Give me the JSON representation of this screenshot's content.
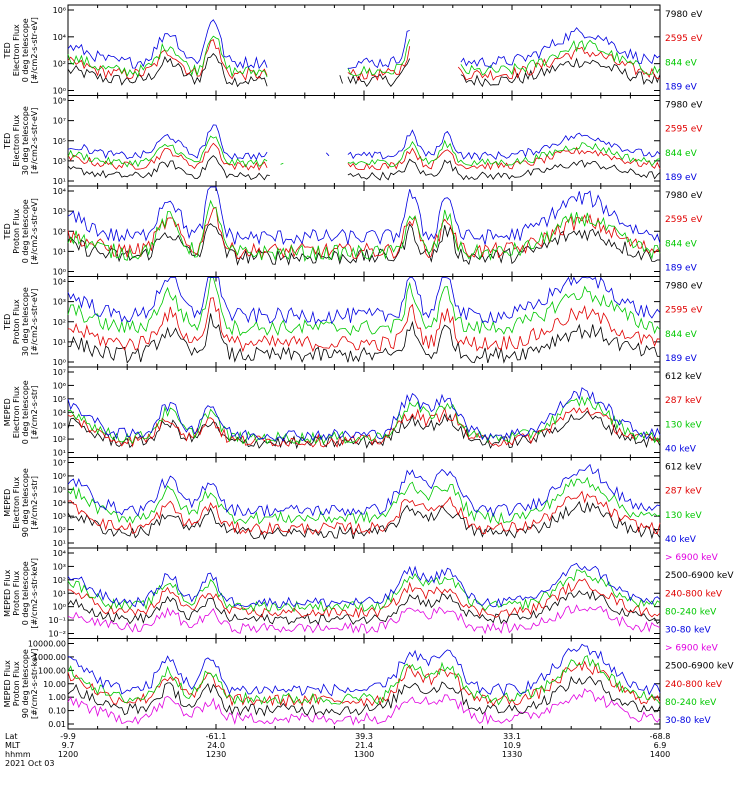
{
  "chart_data": {
    "type": "line",
    "date_label": "2021 Oct 03",
    "xaxis": {
      "rows": [
        {
          "name": "Lat",
          "values": [
            "-9.9",
            "-61.1",
            "39.3",
            "33.1",
            "-68.8"
          ]
        },
        {
          "name": "MLT",
          "values": [
            "9.7",
            "24.0",
            "21.4",
            "10.9",
            "6.9"
          ]
        },
        {
          "name": "hhmm",
          "values": [
            "1200",
            "1230",
            "1300",
            "1330",
            "1400"
          ]
        }
      ]
    },
    "panels": [
      {
        "id": "ted-electron-0",
        "ylabel": [
          "TED",
          "Electron Flux",
          "0 deg telescope",
          "[#/cm2-s-str-eV]"
        ],
        "y_ticks": [
          "10⁶",
          "10⁴",
          "10²",
          "10⁰"
        ],
        "ylog": [
          0,
          6
        ],
        "legend": [
          "7980 eV",
          "2595 eV",
          "844 eV",
          "189 eV"
        ],
        "colors": [
          "#000000",
          "#e00000",
          "#00c800",
          "#0000e0"
        ],
        "series_levels": [
          1.0,
          1.4,
          1.6,
          2.2
        ],
        "gaps": [
          [
            0.34,
            0.47
          ],
          [
            0.58,
            0.66
          ]
        ]
      },
      {
        "id": "ted-electron-30",
        "ylabel": [
          "TED",
          "Electron Flux",
          "30 deg telescope",
          "[#/cm2-s-str-eV]"
        ],
        "y_ticks": [
          "10⁹",
          "10⁷",
          "10⁵",
          "10³",
          "10¹"
        ],
        "ylog": [
          0,
          9
        ],
        "legend": [
          "7980 eV",
          "2595 eV",
          "844 eV",
          "189 eV"
        ],
        "colors": [
          "#000000",
          "#e00000",
          "#00c800",
          "#0000e0"
        ],
        "series_levels": [
          1.0,
          2.0,
          2.3,
          3.0
        ],
        "gaps": [
          [
            0.34,
            0.47
          ]
        ]
      },
      {
        "id": "ted-proton-0",
        "ylabel": [
          "TED",
          "Proton Flux",
          "0 deg telescope",
          "[#/cm2-s-str-eV]"
        ],
        "y_ticks": [
          "10⁴",
          "10³",
          "10²",
          "10¹",
          "10⁰"
        ],
        "ylog": [
          0,
          4.6
        ],
        "legend": [
          "7980 eV",
          "2595 eV",
          "844 eV",
          "189 eV"
        ],
        "colors": [
          "#000000",
          "#e00000",
          "#00c800",
          "#0000e0"
        ],
        "series_levels": [
          1.0,
          1.3,
          1.2,
          2.0
        ],
        "gaps": []
      },
      {
        "id": "ted-proton-30",
        "ylabel": [
          "TED",
          "Proton Flux",
          "30 deg telescope",
          "[#/cm2-s-str-eV]"
        ],
        "y_ticks": [
          "10⁴",
          "10³",
          "10²",
          "10¹",
          "10⁰"
        ],
        "ylog": [
          0,
          4.6
        ],
        "legend": [
          "7980 eV",
          "2595 eV",
          "844 eV",
          "189 eV"
        ],
        "colors": [
          "#000000",
          "#e00000",
          "#00c800",
          "#0000e0"
        ],
        "series_levels": [
          0.6,
          1.2,
          2.0,
          2.6
        ],
        "gaps": []
      },
      {
        "id": "meped-electron-0",
        "ylabel": [
          "MEPED",
          "Electron Flux",
          "0 deg telescope",
          "[#/cm2-s-str]"
        ],
        "y_ticks": [
          "10⁷",
          "10⁶",
          "10⁵",
          "10⁴",
          "10³",
          "10²",
          "10¹"
        ],
        "ylog": [
          1,
          7
        ],
        "legend": [
          "612 keV",
          "287 keV",
          "130 keV",
          "40 keV"
        ],
        "colors": [
          "#000000",
          "#e00000",
          "#00c800",
          "#0000e0"
        ],
        "series_levels": [
          2.0,
          2.1,
          2.3,
          2.5
        ],
        "gaps": []
      },
      {
        "id": "meped-electron-90",
        "ylabel": [
          "MEPED",
          "Electron Flux",
          "90 deg telescope",
          "[#/cm2-s-str]"
        ],
        "y_ticks": [
          "10⁷",
          "10⁶",
          "10⁵",
          "10⁴",
          "10³",
          "10²",
          "10¹"
        ],
        "ylog": [
          1,
          7
        ],
        "legend": [
          "612 keV",
          "287 keV",
          "130 keV",
          "40 keV"
        ],
        "colors": [
          "#000000",
          "#e00000",
          "#00c800",
          "#0000e0"
        ],
        "series_levels": [
          2.0,
          2.3,
          3.0,
          3.5
        ],
        "gaps": []
      },
      {
        "id": "meped-proton-0",
        "ylabel": [
          "MEPED Flux",
          "Proton Flux",
          "0 deg telescope",
          "[#/cm2-s-str-keV]"
        ],
        "y_ticks": [
          "10⁴",
          "10³",
          "10²",
          "10¹",
          "10⁰",
          "10⁻¹",
          "10⁻²"
        ],
        "ylog": [
          -2.5,
          4.5
        ],
        "legend": [
          "> 6900 keV",
          "2500-6900 keV",
          "240-800 keV",
          "80-240 keV",
          "30-80 keV"
        ],
        "colors": [
          "#e000e0",
          "#000000",
          "#e00000",
          "#00c800",
          "#0000e0"
        ],
        "series_levels": [
          -1.7,
          -1.0,
          -0.5,
          0.0,
          0.3
        ],
        "gaps": []
      },
      {
        "id": "meped-proton-90",
        "ylabel": [
          "MEPED Flux",
          "Proton Flux",
          "90 deg telescope",
          "[#/cm2-s-str-keV]"
        ],
        "y_ticks": [
          "10000.00",
          "1000.00",
          "100.00",
          "10.00",
          "1.00",
          "0.10",
          "0.01"
        ],
        "ylog": [
          -2,
          4
        ],
        "legend": [
          "> 6900 keV",
          "2500-6900 keV",
          "240-800 keV",
          "80-240 keV",
          "30-80 keV"
        ],
        "colors": [
          "#e000e0",
          "#000000",
          "#e00000",
          "#00c800",
          "#0000e0"
        ],
        "series_levels": [
          -1.3,
          -0.7,
          -0.1,
          0.0,
          0.6
        ],
        "gaps": []
      }
    ]
  }
}
